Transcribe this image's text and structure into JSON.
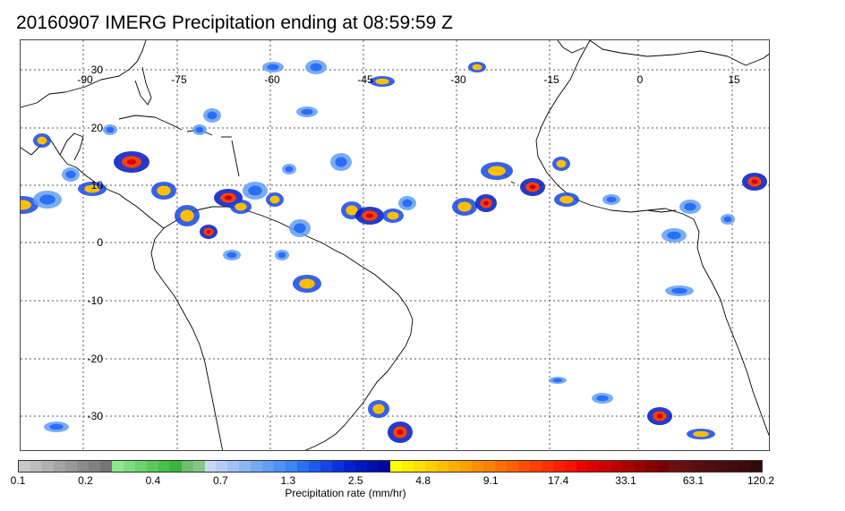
{
  "title": "20160907 IMERG Precipitation ending at 08:59:59 Z",
  "map": {
    "lon_labels": [
      "-90",
      "-75",
      "-60",
      "-45",
      "-30",
      "-15",
      "0",
      "15"
    ],
    "lat_labels": [
      "30",
      "20",
      "10",
      "0",
      "-10",
      "-20",
      "-30"
    ]
  },
  "colorbar": {
    "title": "Precipitation rate (mm/hr)",
    "tick_labels": [
      "0.1",
      "0.2",
      "0.4",
      "0.7",
      "1.3",
      "2.5",
      "4.8",
      "9.1",
      "17.4",
      "33.1",
      "63.1",
      "120.2"
    ],
    "colors": [
      "#c8c8c8",
      "#bcbcbc",
      "#b0b0b0",
      "#a4a4a4",
      "#989898",
      "#8c8c8c",
      "#808080",
      "#747474",
      "#8ee68e",
      "#7ddc7d",
      "#6cd26c",
      "#5bc85b",
      "#4abe4a",
      "#3bb43b",
      "#6fbf6f",
      "#88c488",
      "#c7d9f5",
      "#b3cdf5",
      "#9fc1f5",
      "#8bb5f5",
      "#77a9f5",
      "#639df5",
      "#4f91f5",
      "#3b85f5",
      "#2a6ef5",
      "#1f5af0",
      "#1446e6",
      "#0a32dc",
      "#0022d2",
      "#0018c0",
      "#0010b0",
      "#0008a0",
      "#ffff00",
      "#ffef00",
      "#ffdf00",
      "#ffcf00",
      "#ffbf00",
      "#ffaf00",
      "#ff9f00",
      "#ff8f00",
      "#ff8000",
      "#ff7000",
      "#ff6000",
      "#ff5000",
      "#ff4000",
      "#ff3000",
      "#ff2000",
      "#ff1000",
      "#ee0000",
      "#dd0000",
      "#cc0000",
      "#bb0000",
      "#aa0000",
      "#990000",
      "#880000",
      "#770000",
      "#6a1010",
      "#621010",
      "#5a0f0f",
      "#520e0e",
      "#4a0d0d",
      "#420c0c",
      "#3a0b0b",
      "#330a0a"
    ]
  }
}
